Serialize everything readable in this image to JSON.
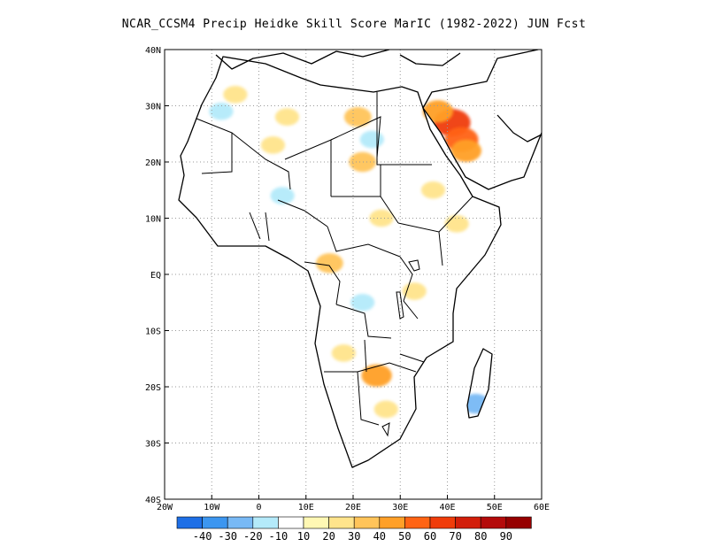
{
  "title": "NCAR_CCSM4 Precip Heidke Skill Score MarIC (1982-2022) JUN Fcst",
  "map": {
    "lon_range": [
      -20,
      60
    ],
    "lat_range": [
      -40,
      40
    ],
    "lon_ticks": [
      {
        "value": -20,
        "label": "20W"
      },
      {
        "value": -10,
        "label": "10W"
      },
      {
        "value": 0,
        "label": "0"
      },
      {
        "value": 10,
        "label": "10E"
      },
      {
        "value": 20,
        "label": "20E"
      },
      {
        "value": 30,
        "label": "30E"
      },
      {
        "value": 40,
        "label": "40E"
      },
      {
        "value": 50,
        "label": "50E"
      },
      {
        "value": 60,
        "label": "60E"
      }
    ],
    "lat_ticks": [
      {
        "value": 40,
        "label": "40N"
      },
      {
        "value": 30,
        "label": "30N"
      },
      {
        "value": 20,
        "label": "20N"
      },
      {
        "value": 10,
        "label": "10N"
      },
      {
        "value": 0,
        "label": "EQ"
      },
      {
        "value": -10,
        "label": "10S"
      },
      {
        "value": -20,
        "label": "20S"
      },
      {
        "value": -30,
        "label": "30S"
      },
      {
        "value": -40,
        "label": "40S"
      }
    ],
    "grid": "dotted"
  },
  "colorbar": {
    "bins": [
      {
        "color": "#1e6fe6"
      },
      {
        "color": "#3c96f0"
      },
      {
        "color": "#78b9f5"
      },
      {
        "color": "#b4eafa"
      },
      {
        "color": "#ffffff"
      },
      {
        "color": "#fff8b4"
      },
      {
        "color": "#ffe48c"
      },
      {
        "color": "#ffc45a"
      },
      {
        "color": "#ffa028"
      },
      {
        "color": "#ff6414"
      },
      {
        "color": "#f03c0a"
      },
      {
        "color": "#d21e0a"
      },
      {
        "color": "#b40a0a"
      },
      {
        "color": "#960000"
      }
    ],
    "labels": [
      "-40",
      "-30",
      "-20",
      "-10",
      "10",
      "20",
      "30",
      "40",
      "50",
      "60",
      "70",
      "80",
      "90"
    ]
  },
  "chart_data": {
    "type": "heatmap",
    "title": "NCAR_CCSM4 Precip Heidke Skill Score MarIC (1982-2022) JUN Fcst",
    "xlim": [
      -20,
      60
    ],
    "ylim": [
      -40,
      40
    ],
    "colorbar_levels": [
      -40,
      -30,
      -20,
      -10,
      10,
      20,
      30,
      40,
      50,
      60,
      70,
      80,
      90
    ],
    "regions": [
      {
        "lon": 41,
        "lat": 27,
        "value": 60
      },
      {
        "lon": 43,
        "lat": 24,
        "value": 50
      },
      {
        "lon": 44,
        "lat": 22,
        "value": 40
      },
      {
        "lon": 38,
        "lat": 29,
        "value": 40
      },
      {
        "lon": 21,
        "lat": 28,
        "value": 30
      },
      {
        "lon": 22,
        "lat": 20,
        "value": 30
      },
      {
        "lon": 26,
        "lat": 10,
        "value": 20
      },
      {
        "lon": 15,
        "lat": 2,
        "value": 30
      },
      {
        "lon": 25,
        "lat": -18,
        "value": 40
      },
      {
        "lon": 27,
        "lat": -24,
        "value": 20
      },
      {
        "lon": 42,
        "lat": 9,
        "value": 20
      },
      {
        "lon": 37,
        "lat": 15,
        "value": 20
      },
      {
        "lon": 3,
        "lat": 23,
        "value": 20
      },
      {
        "lon": 6,
        "lat": 28,
        "value": 20
      },
      {
        "lon": -5,
        "lat": 32,
        "value": 20
      },
      {
        "lon": 18,
        "lat": -14,
        "value": 20
      },
      {
        "lon": 33,
        "lat": -3,
        "value": 20
      },
      {
        "lon": -8,
        "lat": 29,
        "value": -20
      },
      {
        "lon": 46,
        "lat": -23,
        "value": -30
      },
      {
        "lon": 22,
        "lat": -5,
        "value": -20
      },
      {
        "lon": 5,
        "lat": 14,
        "value": -20
      },
      {
        "lon": 24,
        "lat": 24,
        "value": -20
      },
      {
        "lon": 45,
        "lat": 37,
        "value": -20
      },
      {
        "lon": -4,
        "lat": 25,
        "value": -10
      },
      {
        "lon": 12,
        "lat": 11,
        "value": -10
      },
      {
        "lon": 30,
        "lat": 5,
        "value": -10
      }
    ]
  }
}
